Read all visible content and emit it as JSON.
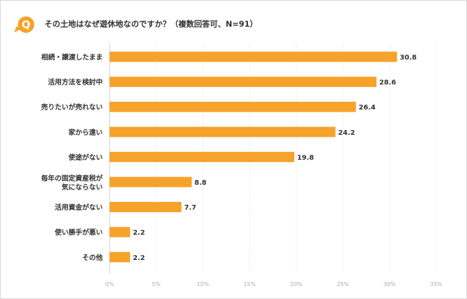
{
  "header": {
    "badge": "Q",
    "title": "その土地はなぜ遊休地なのですか？（複数回答可、N=91）"
  },
  "chart_data": {
    "type": "bar",
    "orientation": "horizontal",
    "title": "その土地はなぜ遊休地なのですか？（複数回答可、N=91）",
    "categories": [
      [
        "相続・譲渡したまま"
      ],
      [
        "活用方法を検討中"
      ],
      [
        "売りたいが売れない"
      ],
      [
        "家から遠い"
      ],
      [
        "使途がない"
      ],
      [
        "毎年の固定資産税が",
        "気にならない"
      ],
      [
        "活用資金がない"
      ],
      [
        "使い勝手が悪い"
      ],
      [
        "その他"
      ]
    ],
    "values": [
      30.8,
      28.6,
      26.4,
      24.2,
      19.8,
      8.8,
      7.7,
      2.2,
      2.2
    ],
    "value_labels": [
      "30.8",
      "28.6",
      "26.4",
      "24.2",
      "19.8",
      "8.8",
      "7.7",
      "2.2",
      "2.2"
    ],
    "xlim": [
      0,
      35
    ],
    "ticks": [
      0,
      5,
      10,
      15,
      20,
      25,
      30,
      35
    ],
    "tick_labels": [
      "0%",
      "5%",
      "10%",
      "15%",
      "20%",
      "25%",
      "30%",
      "35%"
    ],
    "grid": true,
    "bar_color": "#f6a22b",
    "grid_color": "#e6e6e6"
  }
}
